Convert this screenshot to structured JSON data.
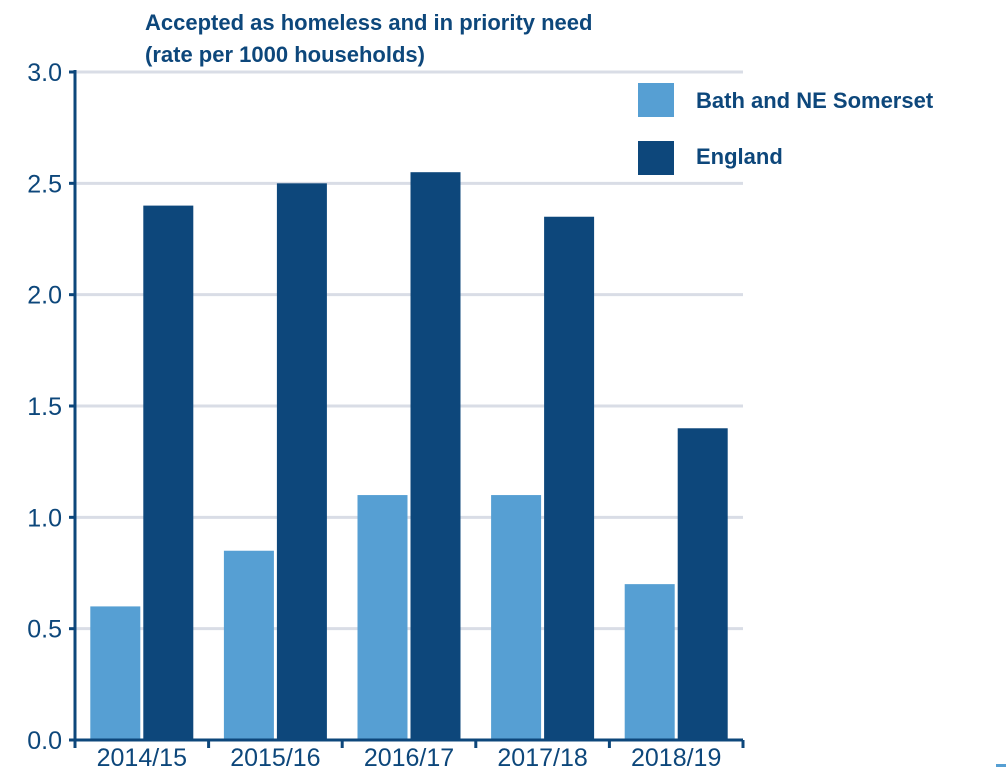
{
  "chart_data": {
    "type": "bar",
    "title_lines": [
      "Accepted as homeless and in priority need",
      "(rate per 1000 households)"
    ],
    "xlabel": "",
    "ylabel": "",
    "categories": [
      "2014/15",
      "2015/16",
      "2016/17",
      "2017/18",
      "2018/19"
    ],
    "series": [
      {
        "name": "Bath and NE Somerset",
        "color": "#569fd3",
        "values": [
          0.6,
          0.85,
          1.1,
          1.1,
          0.7
        ]
      },
      {
        "name": "England",
        "color": "#0d477b",
        "values": [
          2.4,
          2.5,
          2.55,
          2.35,
          1.4
        ]
      }
    ],
    "ylim": [
      0,
      3
    ],
    "yticks": [
      "0.0",
      "0.5",
      "1.0",
      "1.5",
      "2.0",
      "2.5",
      "3.0"
    ],
    "grid": true,
    "legend_position": "top-right",
    "colors": {
      "title": "#0d477b",
      "axis": "#0d477b",
      "grid": "#d9dde6",
      "tick_label": "#0d477b"
    }
  }
}
